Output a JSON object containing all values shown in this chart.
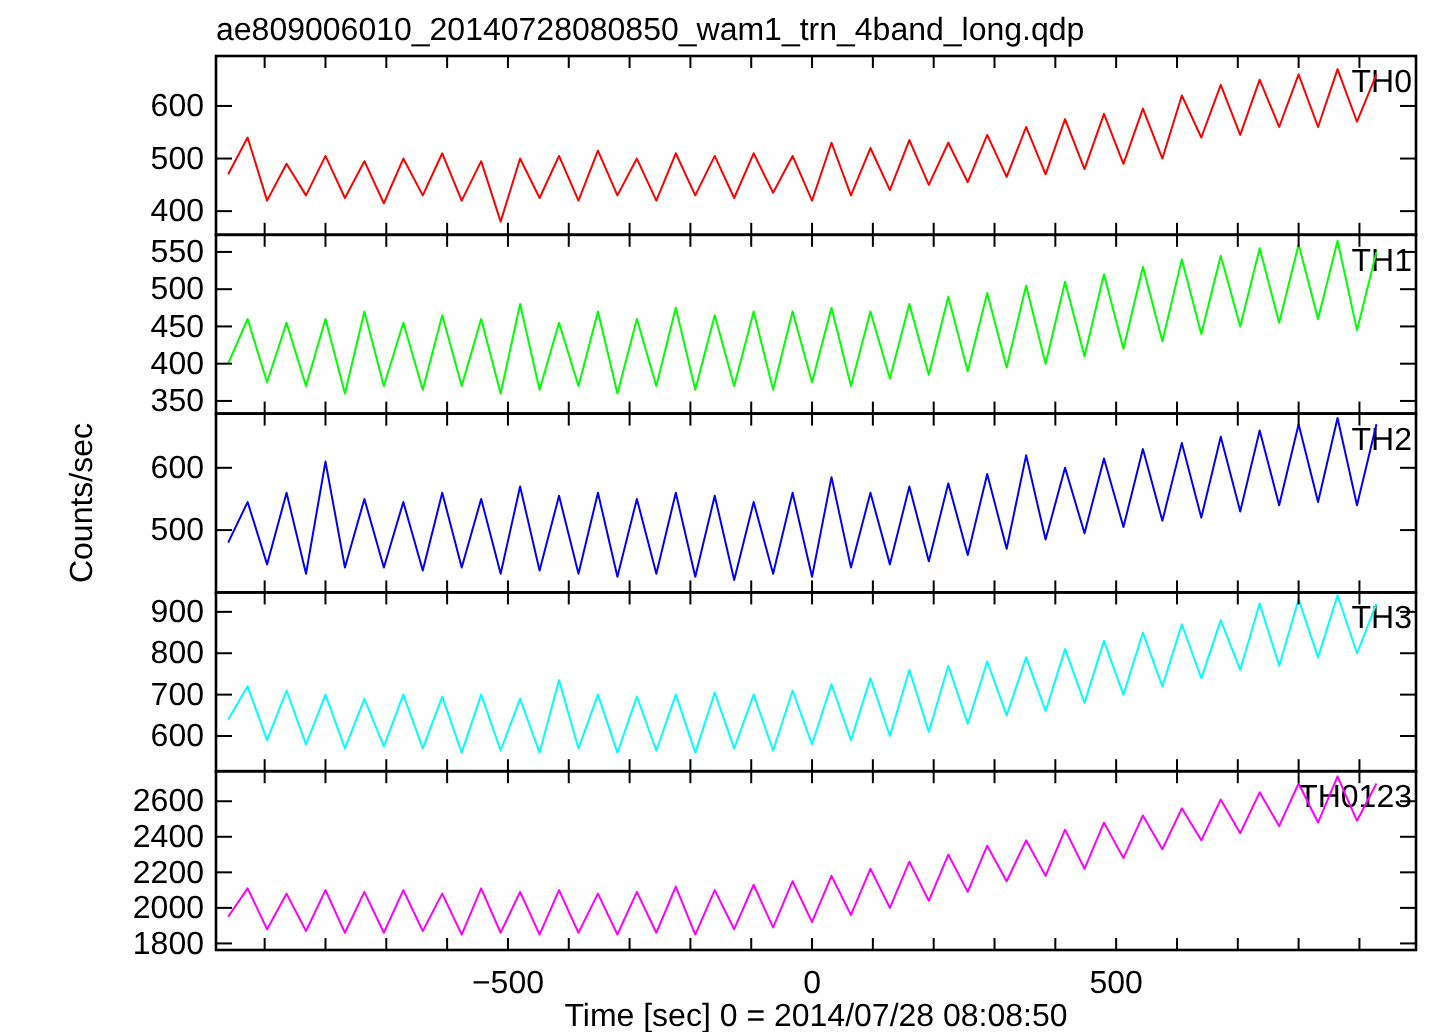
{
  "chart_data": [
    {
      "type": "line",
      "title": "ae809006010_20140728080850_wam1_trn_4band_long.qdp",
      "annotations": [
        "TH0"
      ],
      "tick_labels": "y",
      "x": [
        -960,
        -928,
        -896,
        -864,
        -832,
        -800,
        -768,
        -736,
        -704,
        -672,
        -640,
        -608,
        -576,
        -544,
        -512,
        -480,
        -448,
        -416,
        -384,
        -352,
        -320,
        -288,
        -256,
        -224,
        -192,
        -160,
        -128,
        -96,
        -64,
        -32,
        0,
        32,
        64,
        96,
        128,
        160,
        192,
        224,
        256,
        288,
        320,
        352,
        384,
        416,
        448,
        480,
        512,
        544,
        576,
        608,
        640,
        672,
        704,
        736,
        768,
        800,
        832,
        864,
        896,
        928
      ],
      "series": [
        {
          "color": "#ff0000",
          "values": [
            470,
            540,
            420,
            490,
            430,
            505,
            425,
            495,
            415,
            500,
            430,
            510,
            420,
            495,
            380,
            500,
            425,
            505,
            420,
            515,
            430,
            500,
            420,
            510,
            430,
            505,
            425,
            510,
            435,
            505,
            420,
            530,
            430,
            520,
            440,
            535,
            450,
            530,
            455,
            545,
            465,
            560,
            470,
            575,
            480,
            585,
            490,
            595,
            500,
            620,
            540,
            640,
            545,
            650,
            560,
            660,
            560,
            670,
            570,
            660
          ]
        }
      ],
      "xlim": [
        -980,
        993
      ],
      "xticks": [
        {
          "value": -900,
          "label": null
        },
        {
          "value": -800,
          "label": null
        },
        {
          "value": -700,
          "label": null
        },
        {
          "value": -600,
          "label": null
        },
        {
          "value": -500,
          "label": null
        },
        {
          "value": -400,
          "label": null
        },
        {
          "value": -300,
          "label": null
        },
        {
          "value": -200,
          "label": null
        },
        {
          "value": -100,
          "label": null
        },
        {
          "value": 0,
          "label": null
        },
        {
          "value": 100,
          "label": null
        },
        {
          "value": 200,
          "label": null
        },
        {
          "value": 300,
          "label": null
        },
        {
          "value": 400,
          "label": null
        },
        {
          "value": 500,
          "label": null
        },
        {
          "value": 600,
          "label": null
        },
        {
          "value": 700,
          "label": null
        },
        {
          "value": 800,
          "label": null
        },
        {
          "value": 900,
          "label": null
        }
      ],
      "ylim": [
        355,
        695
      ],
      "yticks": [
        400,
        500,
        600
      ]
    },
    {
      "type": "line",
      "annotations": [
        "TH1"
      ],
      "tick_labels": "y",
      "x": [
        -960,
        -928,
        -896,
        -864,
        -832,
        -800,
        -768,
        -736,
        -704,
        -672,
        -640,
        -608,
        -576,
        -544,
        -512,
        -480,
        -448,
        -416,
        -384,
        -352,
        -320,
        -288,
        -256,
        -224,
        -192,
        -160,
        -128,
        -96,
        -64,
        -32,
        0,
        32,
        64,
        96,
        128,
        160,
        192,
        224,
        256,
        288,
        320,
        352,
        384,
        416,
        448,
        480,
        512,
        544,
        576,
        608,
        640,
        672,
        704,
        736,
        768,
        800,
        832,
        864,
        896,
        928
      ],
      "series": [
        {
          "color": "#00ff00",
          "values": [
            400,
            460,
            375,
            455,
            370,
            460,
            360,
            470,
            370,
            455,
            365,
            465,
            370,
            460,
            360,
            480,
            365,
            455,
            370,
            470,
            360,
            460,
            370,
            475,
            365,
            465,
            370,
            470,
            365,
            470,
            375,
            475,
            370,
            470,
            380,
            480,
            385,
            490,
            390,
            495,
            395,
            505,
            400,
            510,
            410,
            520,
            420,
            530,
            430,
            540,
            440,
            545,
            450,
            555,
            455,
            560,
            460,
            565,
            445,
            550
          ]
        }
      ],
      "xlim": [
        -980,
        993
      ],
      "xticks": [
        {
          "value": -900,
          "label": null
        },
        {
          "value": -800,
          "label": null
        },
        {
          "value": -700,
          "label": null
        },
        {
          "value": -600,
          "label": null
        },
        {
          "value": -500,
          "label": null
        },
        {
          "value": -400,
          "label": null
        },
        {
          "value": -300,
          "label": null
        },
        {
          "value": -200,
          "label": null
        },
        {
          "value": -100,
          "label": null
        },
        {
          "value": 0,
          "label": null
        },
        {
          "value": 100,
          "label": null
        },
        {
          "value": 200,
          "label": null
        },
        {
          "value": 300,
          "label": null
        },
        {
          "value": 400,
          "label": null
        },
        {
          "value": 500,
          "label": null
        },
        {
          "value": 600,
          "label": null
        },
        {
          "value": 700,
          "label": null
        },
        {
          "value": 800,
          "label": null
        },
        {
          "value": 900,
          "label": null
        }
      ],
      "ylim": [
        333,
        573
      ],
      "yticks": [
        350,
        400,
        450,
        500,
        550
      ]
    },
    {
      "type": "line",
      "annotations": [
        "TH2"
      ],
      "tick_labels": "y",
      "ylabel": "Counts/sec",
      "x": [
        -960,
        -928,
        -896,
        -864,
        -832,
        -800,
        -768,
        -736,
        -704,
        -672,
        -640,
        -608,
        -576,
        -544,
        -512,
        -480,
        -448,
        -416,
        -384,
        -352,
        -320,
        -288,
        -256,
        -224,
        -192,
        -160,
        -128,
        -96,
        -64,
        -32,
        0,
        32,
        64,
        96,
        128,
        160,
        192,
        224,
        256,
        288,
        320,
        352,
        384,
        416,
        448,
        480,
        512,
        544,
        576,
        608,
        640,
        672,
        704,
        736,
        768,
        800,
        832,
        864,
        896,
        928
      ],
      "series": [
        {
          "color": "#0000ff",
          "values": [
            480,
            545,
            445,
            560,
            430,
            610,
            440,
            550,
            440,
            545,
            435,
            560,
            440,
            550,
            430,
            570,
            435,
            555,
            430,
            560,
            425,
            550,
            430,
            560,
            425,
            555,
            420,
            545,
            430,
            560,
            425,
            585,
            440,
            560,
            445,
            570,
            450,
            575,
            460,
            590,
            470,
            620,
            485,
            600,
            495,
            615,
            505,
            630,
            515,
            640,
            520,
            650,
            530,
            660,
            540,
            670,
            545,
            680,
            540,
            670
          ]
        }
      ],
      "xlim": [
        -980,
        993
      ],
      "xticks": [
        {
          "value": -900,
          "label": null
        },
        {
          "value": -800,
          "label": null
        },
        {
          "value": -700,
          "label": null
        },
        {
          "value": -600,
          "label": null
        },
        {
          "value": -500,
          "label": null
        },
        {
          "value": -400,
          "label": null
        },
        {
          "value": -300,
          "label": null
        },
        {
          "value": -200,
          "label": null
        },
        {
          "value": -100,
          "label": null
        },
        {
          "value": 0,
          "label": null
        },
        {
          "value": 100,
          "label": null
        },
        {
          "value": 200,
          "label": null
        },
        {
          "value": 300,
          "label": null
        },
        {
          "value": 400,
          "label": null
        },
        {
          "value": 500,
          "label": null
        },
        {
          "value": 600,
          "label": null
        },
        {
          "value": 700,
          "label": null
        },
        {
          "value": 800,
          "label": null
        },
        {
          "value": 900,
          "label": null
        }
      ],
      "ylim": [
        400,
        687
      ],
      "yticks": [
        500,
        600
      ]
    },
    {
      "type": "line",
      "annotations": [
        "TH3"
      ],
      "tick_labels": "y",
      "x": [
        -960,
        -928,
        -896,
        -864,
        -832,
        -800,
        -768,
        -736,
        -704,
        -672,
        -640,
        -608,
        -576,
        -544,
        -512,
        -480,
        -448,
        -416,
        -384,
        -352,
        -320,
        -288,
        -256,
        -224,
        -192,
        -160,
        -128,
        -96,
        -64,
        -32,
        0,
        32,
        64,
        96,
        128,
        160,
        192,
        224,
        256,
        288,
        320,
        352,
        384,
        416,
        448,
        480,
        512,
        544,
        576,
        608,
        640,
        672,
        704,
        736,
        768,
        800,
        832,
        864,
        896,
        928
      ],
      "series": [
        {
          "color": "#00ffff",
          "values": [
            640,
            720,
            590,
            710,
            580,
            700,
            570,
            690,
            575,
            700,
            570,
            695,
            560,
            700,
            565,
            690,
            560,
            735,
            570,
            700,
            560,
            695,
            565,
            700,
            560,
            705,
            570,
            700,
            565,
            710,
            580,
            725,
            590,
            740,
            600,
            760,
            610,
            770,
            630,
            780,
            650,
            790,
            660,
            810,
            680,
            830,
            700,
            850,
            720,
            870,
            740,
            880,
            760,
            920,
            770,
            930,
            790,
            940,
            800,
            920
          ]
        }
      ],
      "xlim": [
        -980,
        993
      ],
      "xticks": [
        {
          "value": -900,
          "label": null
        },
        {
          "value": -800,
          "label": null
        },
        {
          "value": -700,
          "label": null
        },
        {
          "value": -600,
          "label": null
        },
        {
          "value": -500,
          "label": null
        },
        {
          "value": -400,
          "label": null
        },
        {
          "value": -300,
          "label": null
        },
        {
          "value": -200,
          "label": null
        },
        {
          "value": -100,
          "label": null
        },
        {
          "value": 0,
          "label": null
        },
        {
          "value": 100,
          "label": null
        },
        {
          "value": 200,
          "label": null
        },
        {
          "value": 300,
          "label": null
        },
        {
          "value": 400,
          "label": null
        },
        {
          "value": 500,
          "label": null
        },
        {
          "value": 600,
          "label": null
        },
        {
          "value": 700,
          "label": null
        },
        {
          "value": 800,
          "label": null
        },
        {
          "value": 900,
          "label": null
        }
      ],
      "ylim": [
        515,
        947
      ],
      "yticks": [
        600,
        700,
        800,
        900
      ]
    },
    {
      "type": "line",
      "annotations": [
        "TH0123"
      ],
      "xlabel": "Time [sec] 0 = 2014/07/28 08:08:50",
      "x": [
        -960,
        -928,
        -896,
        -864,
        -832,
        -800,
        -768,
        -736,
        -704,
        -672,
        -640,
        -608,
        -576,
        -544,
        -512,
        -480,
        -448,
        -416,
        -384,
        -352,
        -320,
        -288,
        -256,
        -224,
        -192,
        -160,
        -128,
        -96,
        -64,
        -32,
        0,
        32,
        64,
        96,
        128,
        160,
        192,
        224,
        256,
        288,
        320,
        352,
        384,
        416,
        448,
        480,
        512,
        544,
        576,
        608,
        640,
        672,
        704,
        736,
        768,
        800,
        832,
        864,
        896,
        928
      ],
      "series": [
        {
          "color": "#ff00ff",
          "values": [
            1950,
            2110,
            1880,
            2080,
            1870,
            2100,
            1860,
            2090,
            1860,
            2100,
            1870,
            2080,
            1850,
            2110,
            1860,
            2090,
            1850,
            2100,
            1860,
            2080,
            1850,
            2090,
            1860,
            2120,
            1850,
            2100,
            1880,
            2130,
            1890,
            2150,
            1920,
            2180,
            1960,
            2220,
            2000,
            2260,
            2040,
            2300,
            2090,
            2350,
            2150,
            2380,
            2180,
            2440,
            2220,
            2480,
            2280,
            2520,
            2330,
            2560,
            2380,
            2610,
            2420,
            2650,
            2460,
            2700,
            2480,
            2740,
            2490,
            2700
          ]
        }
      ],
      "xlim": [
        -980,
        993
      ],
      "xticks": [
        {
          "value": -900,
          "label": null
        },
        {
          "value": -800,
          "label": null
        },
        {
          "value": -700,
          "label": null
        },
        {
          "value": -600,
          "label": null
        },
        {
          "value": -500,
          "label": "−500"
        },
        {
          "value": -400,
          "label": null
        },
        {
          "value": -300,
          "label": null
        },
        {
          "value": -200,
          "label": null
        },
        {
          "value": -100,
          "label": null
        },
        {
          "value": 0,
          "label": "0"
        },
        {
          "value": 100,
          "label": null
        },
        {
          "value": 200,
          "label": null
        },
        {
          "value": 300,
          "label": null
        },
        {
          "value": 400,
          "label": null
        },
        {
          "value": 500,
          "label": "500"
        },
        {
          "value": 600,
          "label": null
        },
        {
          "value": 700,
          "label": null
        },
        {
          "value": 800,
          "label": null
        },
        {
          "value": 900,
          "label": null
        }
      ],
      "ylim": [
        1763,
        2769
      ],
      "yticks": [
        1800,
        2000,
        2200,
        2400,
        2600
      ]
    }
  ]
}
